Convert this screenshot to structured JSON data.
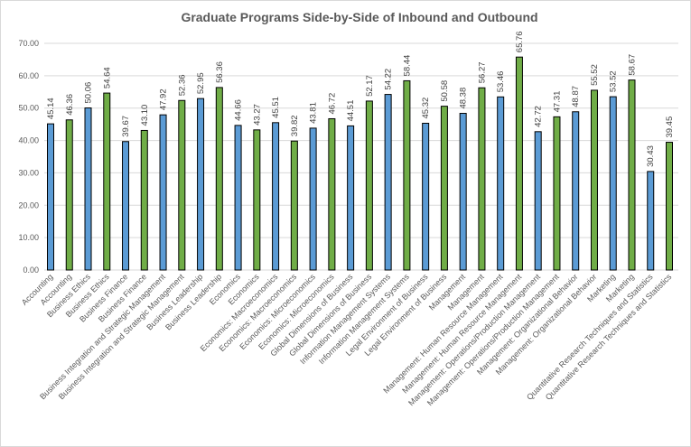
{
  "chart_data": {
    "type": "bar",
    "title": "Graduate Programs Side-by-Side of Inbound and Outbound",
    "xlabel": "",
    "ylabel": "",
    "ylim": [
      0,
      70
    ],
    "yticks": [
      "0.00",
      "10.00",
      "20.00",
      "30.00",
      "40.00",
      "50.00",
      "60.00",
      "70.00"
    ],
    "grid": true,
    "colors": {
      "inbound": "#5B9BD5",
      "outbound": "#70AD47"
    },
    "categories": [
      "Accounting",
      "Accounting",
      "Business Ethics",
      "Business Ethics",
      "Business Finance",
      "Business Finance",
      "Business Integration and Strategic Management",
      "Business Integration and Strategic Management",
      "Business Leadership",
      "Business Leadership",
      "Economics",
      "Economics",
      "Economics: Macroeconomics",
      "Economics: Macroeconomics",
      "Economics: Microeconomics",
      "Economics: Microeconomics",
      "Global Dimensions of Business",
      "Global Dimensions of Business",
      "Information Management Systems",
      "Information Management Systems",
      "Legal Environment of Business",
      "Legal Environment of Business",
      "Management",
      "Management",
      "Management: Human Resource Management",
      "Management: Human Resource Management",
      "Management: Operations/Production Management",
      "Management: Operations/Production Management",
      "Management: Organizational Behavior",
      "Management: Organizational Behavior",
      "Marketing",
      "Marketing",
      "Quantitative Research Techniques and Statistics",
      "Quantitative Research Techniques and Statistics"
    ],
    "values": [
      45.14,
      46.36,
      50.06,
      54.64,
      39.67,
      43.1,
      47.92,
      52.36,
      52.95,
      56.36,
      44.66,
      43.27,
      45.51,
      39.82,
      43.81,
      46.72,
      44.51,
      52.17,
      54.22,
      58.44,
      45.32,
      50.58,
      48.38,
      56.27,
      53.46,
      65.76,
      42.72,
      47.31,
      48.87,
      55.52,
      53.52,
      58.67,
      30.43,
      39.45
    ],
    "labels": [
      "45.14",
      "46.36",
      "50.06",
      "54.64",
      "39.67",
      "43.10",
      "47.92",
      "52.36",
      "52.95",
      "56.36",
      "44.66",
      "43.27",
      "45.51",
      "39.82",
      "43.81",
      "46.72",
      "44.51",
      "52.17",
      "54.22",
      "58.44",
      "45.32",
      "50.58",
      "48.38",
      "56.27",
      "53.46",
      "65.76",
      "42.72",
      "47.31",
      "48.87",
      "55.52",
      "53.52",
      "58.67",
      "30.43",
      "39.45"
    ],
    "series_pattern": [
      "inbound",
      "outbound"
    ]
  }
}
